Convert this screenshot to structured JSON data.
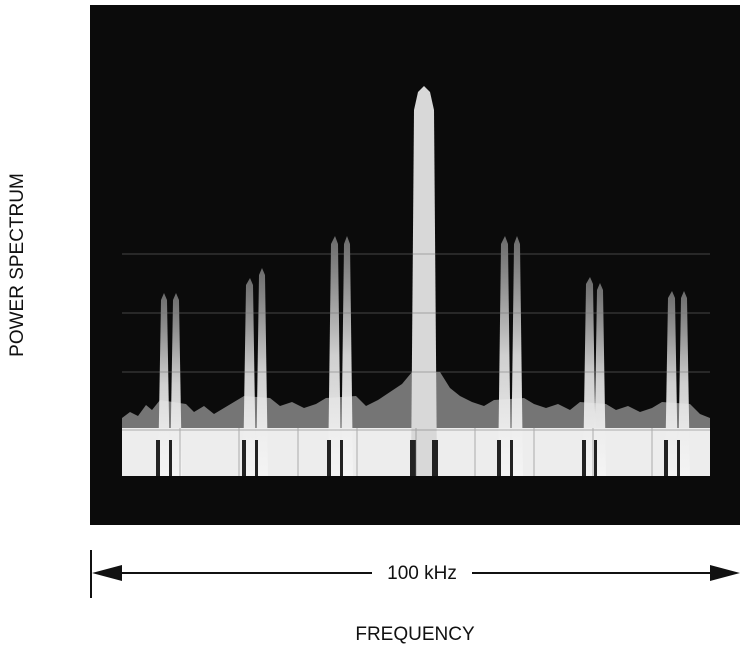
{
  "labels": {
    "y_axis": "POWER SPECTRUM",
    "span": "100 kHz",
    "x_axis": "FREQUENCY"
  }
}
